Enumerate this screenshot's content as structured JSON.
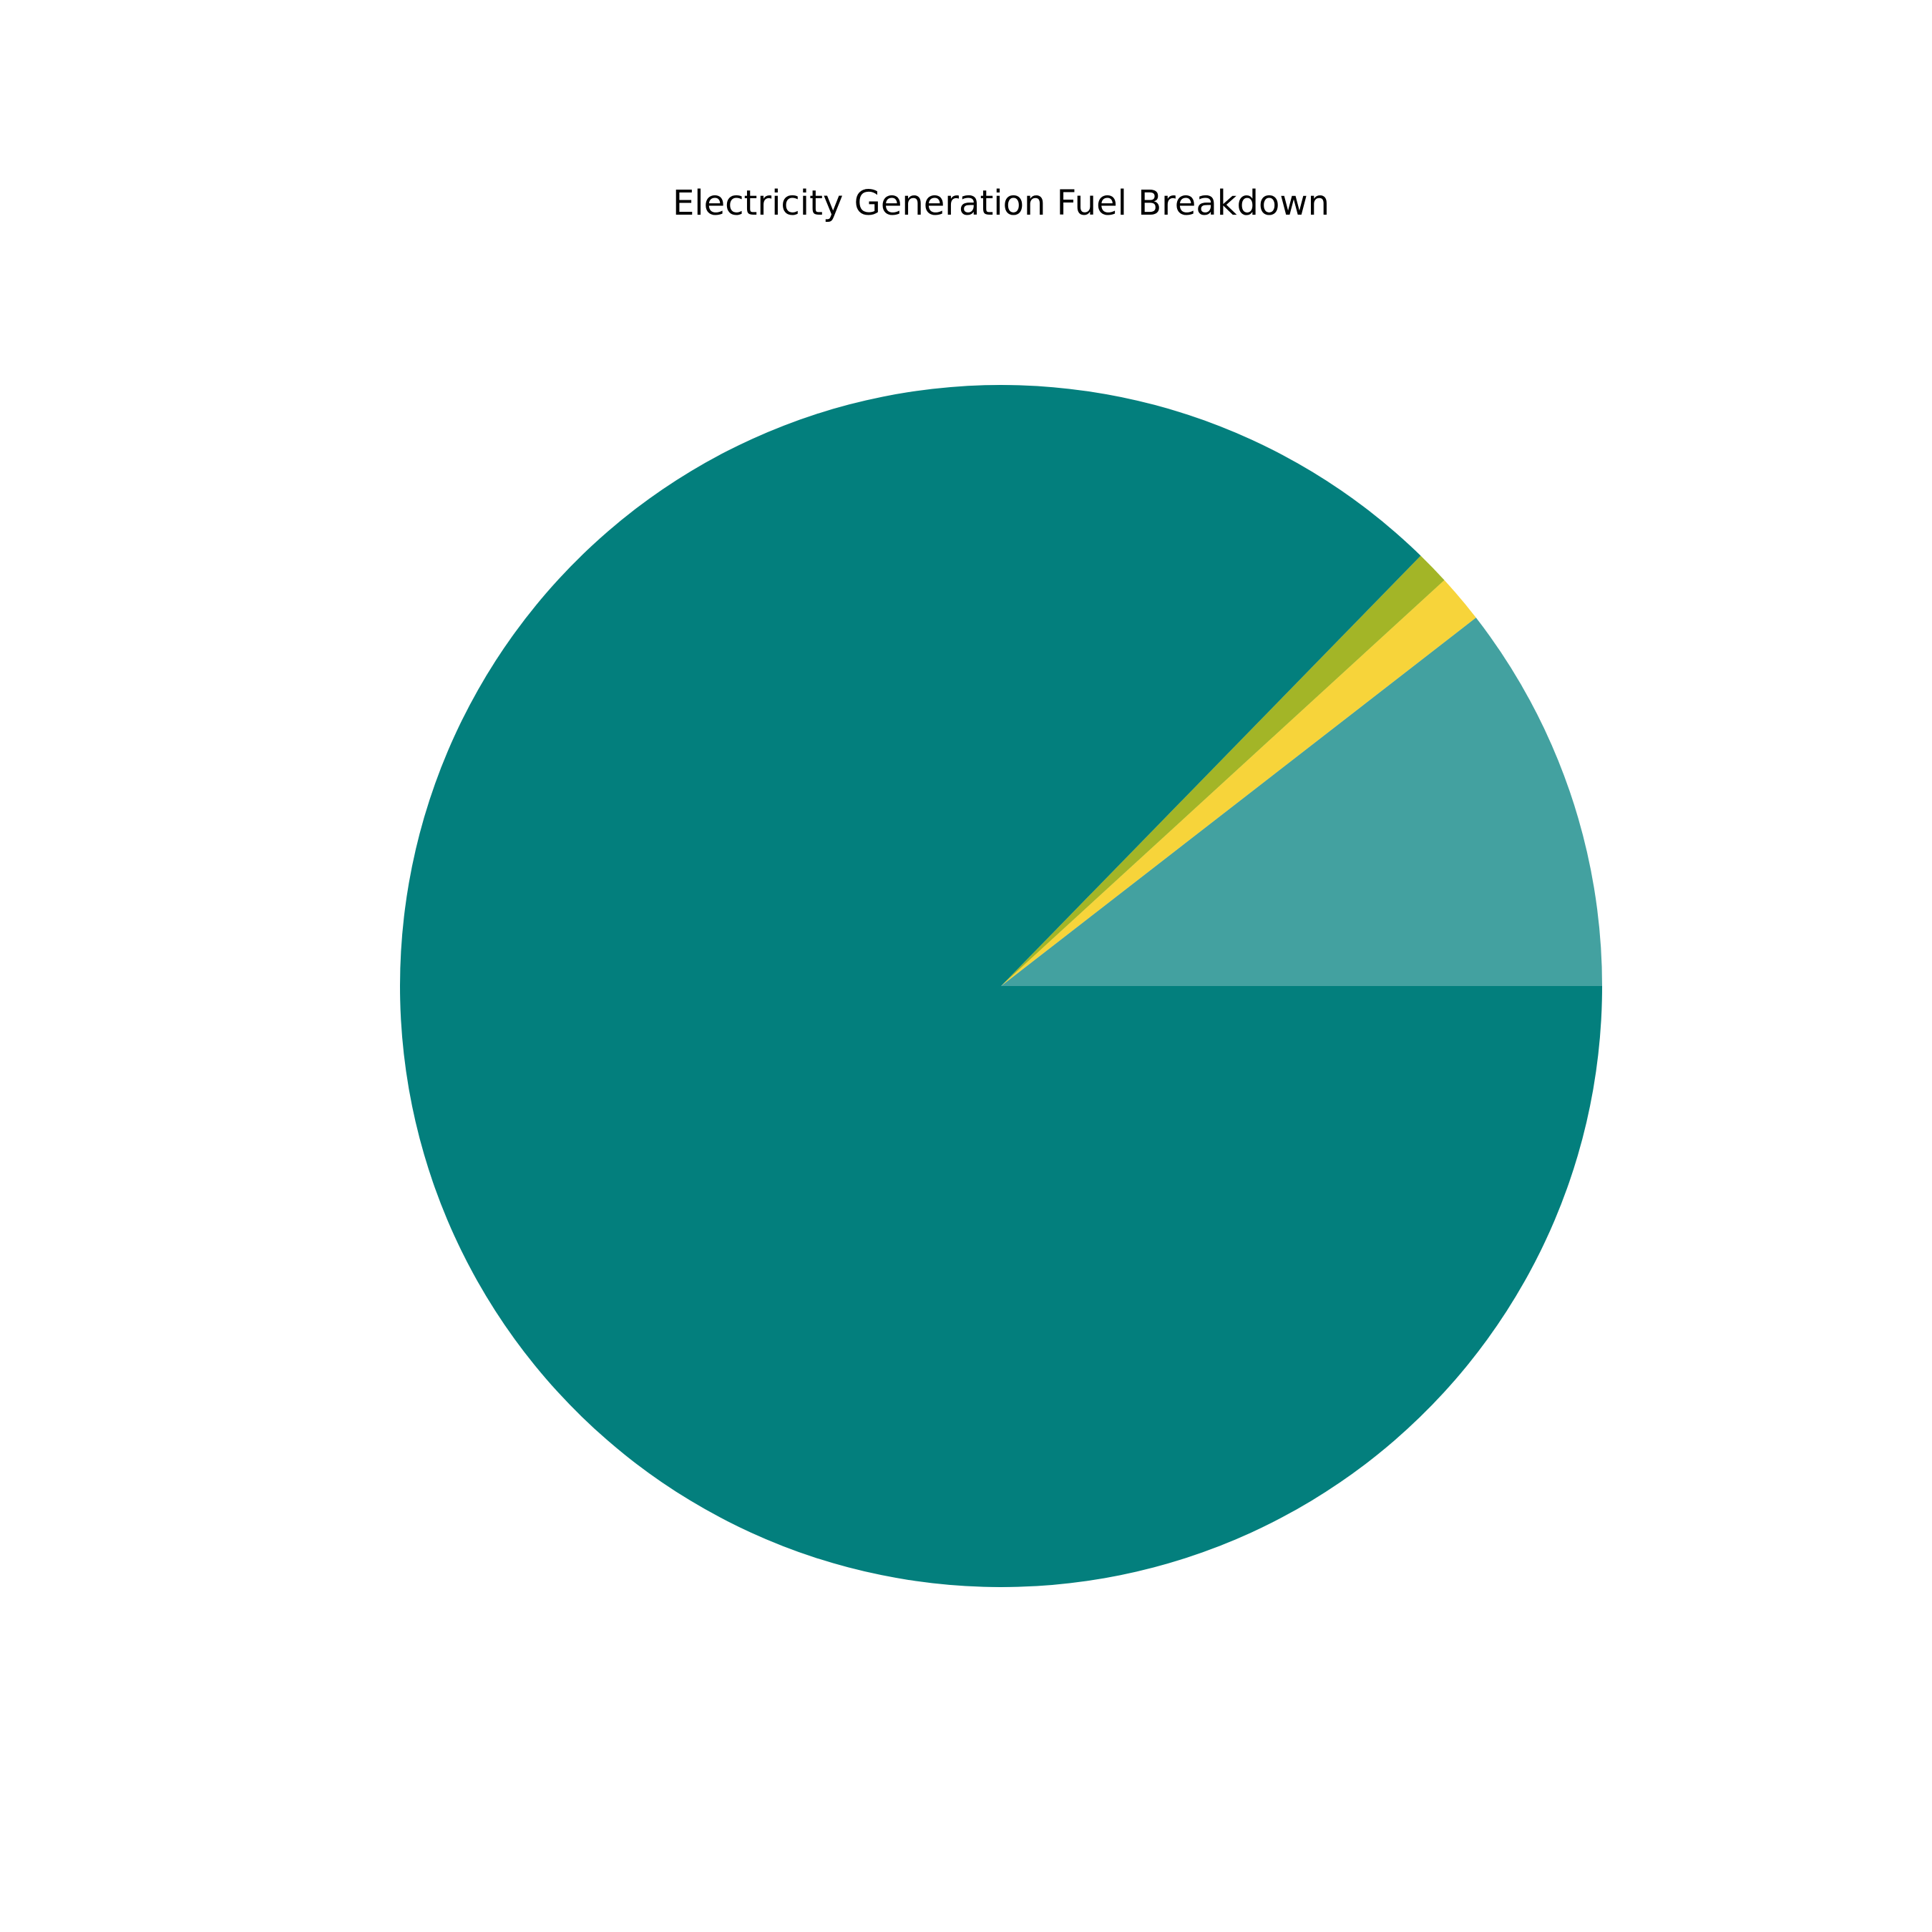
{
  "chart_data": {
    "type": "pie",
    "title": "Electricity Generation Fuel Breakdown",
    "start_angle_deg": 0,
    "direction": "counterclockwise",
    "slices": [
      {
        "value": 10.5,
        "color": "#43a1a0"
      },
      {
        "value": 1.3,
        "color": "#f7d43a"
      },
      {
        "value": 0.9,
        "color": "#a3b527"
      },
      {
        "value": 87.3,
        "color": "#037f7d"
      }
    ],
    "legend": "none",
    "data_labels": "none"
  }
}
